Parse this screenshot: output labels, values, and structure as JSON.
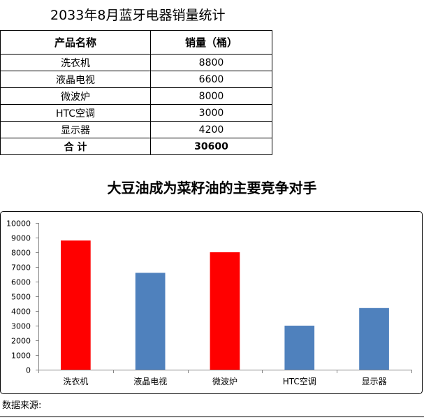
{
  "page": {
    "title": "2033年8月蓝牙电器销量统计"
  },
  "table": {
    "headers": [
      "产品名称",
      "销量（桶）"
    ],
    "rows": [
      [
        "洗衣机",
        "8800"
      ],
      [
        "液晶电视",
        "6600"
      ],
      [
        "微波炉",
        "8000"
      ],
      [
        "HTC空调",
        "3000"
      ],
      [
        "显示器",
        "4200"
      ]
    ],
    "total": [
      "合 计",
      "30600"
    ]
  },
  "chart_data": {
    "type": "bar",
    "title": "大豆油成为菜籽油的主要竞争对手",
    "categories": [
      "洗衣机",
      "液晶电视",
      "微波炉",
      "HTC空调",
      "显示器"
    ],
    "values": [
      8800,
      6600,
      8000,
      3000,
      4200
    ],
    "colors": [
      "#FF0000",
      "#4F81BD",
      "#FF0000",
      "#4F81BD",
      "#4F81BD"
    ],
    "ylim": [
      0,
      10000
    ],
    "yticks": [
      0,
      1000,
      2000,
      3000,
      4000,
      5000,
      6000,
      7000,
      8000,
      9000,
      10000
    ],
    "grid": false,
    "legend": false
  },
  "footer": {
    "source_label": "数据来源:"
  }
}
